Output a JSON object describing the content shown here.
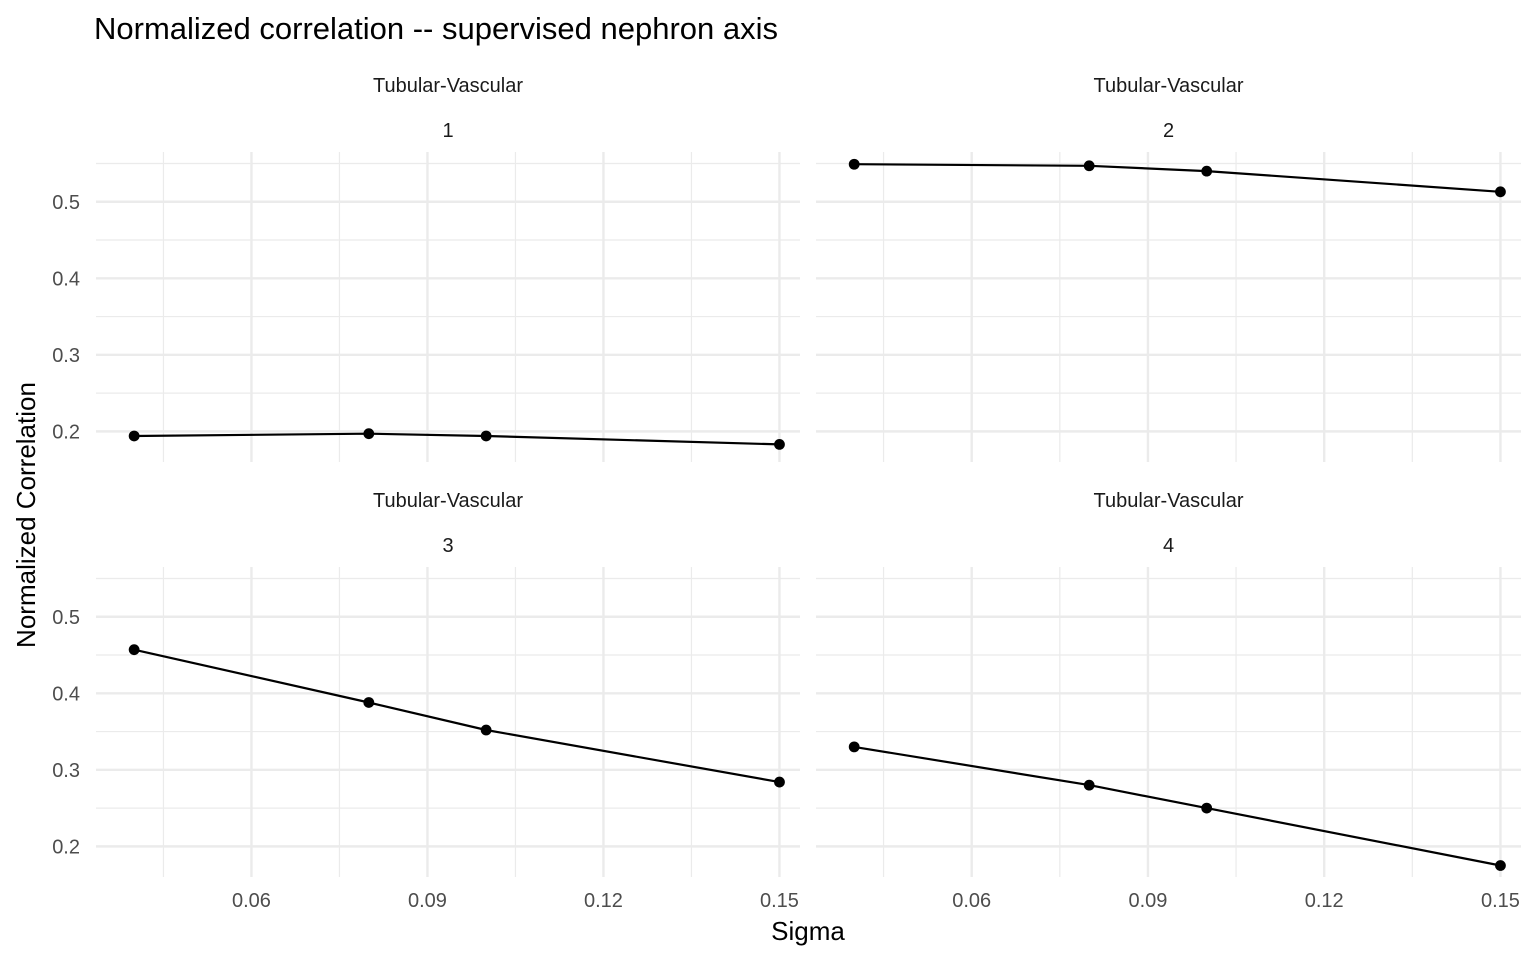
{
  "chart_data": {
    "type": "line",
    "title": "Normalized correlation -- supervised nephron axis",
    "xlabel": "Sigma",
    "ylabel": "Normalized Correlation",
    "xlim": [
      0.0335,
      0.1535
    ],
    "ylim": [
      0.16,
      0.565
    ],
    "x_ticks": [
      0.06,
      0.09,
      0.12,
      0.15
    ],
    "x_tick_labels": [
      "0.06",
      "0.09",
      "0.12",
      "0.15"
    ],
    "y_ticks": [
      0.2,
      0.3,
      0.4,
      0.5
    ],
    "y_tick_labels": [
      "0.2",
      "0.3",
      "0.4",
      "0.5"
    ],
    "grid": true,
    "legend": "none",
    "line_color": "#000000",
    "panels": [
      {
        "strip_label": "Tubular-Vascular",
        "strip_number": "1",
        "x": [
          0.04,
          0.08,
          0.1,
          0.15
        ],
        "y": [
          0.194,
          0.197,
          0.194,
          0.183
        ]
      },
      {
        "strip_label": "Tubular-Vascular",
        "strip_number": "2",
        "x": [
          0.04,
          0.08,
          0.1,
          0.15
        ],
        "y": [
          0.549,
          0.547,
          0.54,
          0.513
        ]
      },
      {
        "strip_label": "Tubular-Vascular",
        "strip_number": "3",
        "x": [
          0.04,
          0.08,
          0.1,
          0.15
        ],
        "y": [
          0.457,
          0.388,
          0.352,
          0.284
        ]
      },
      {
        "strip_label": "Tubular-Vascular",
        "strip_number": "4",
        "x": [
          0.04,
          0.08,
          0.1,
          0.15
        ],
        "y": [
          0.33,
          0.28,
          0.25,
          0.175
        ]
      }
    ]
  }
}
